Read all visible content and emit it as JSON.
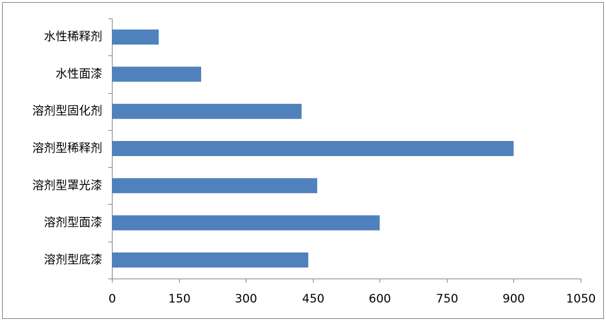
{
  "chart_data": {
    "type": "hbar",
    "categories": [
      "水性稀释剂",
      "水性面漆",
      "溶剂型固化剂",
      "溶剂型稀释剂",
      "溶剂型罩光漆",
      "溶剂型面漆",
      "溶剂型底漆"
    ],
    "values": [
      105,
      200,
      425,
      900,
      460,
      600,
      440
    ],
    "color": "#4f81bd",
    "xlim": [
      0,
      1050
    ],
    "xticks": [
      0,
      150,
      300,
      450,
      600,
      750,
      900,
      1050
    ],
    "grid": false
  }
}
